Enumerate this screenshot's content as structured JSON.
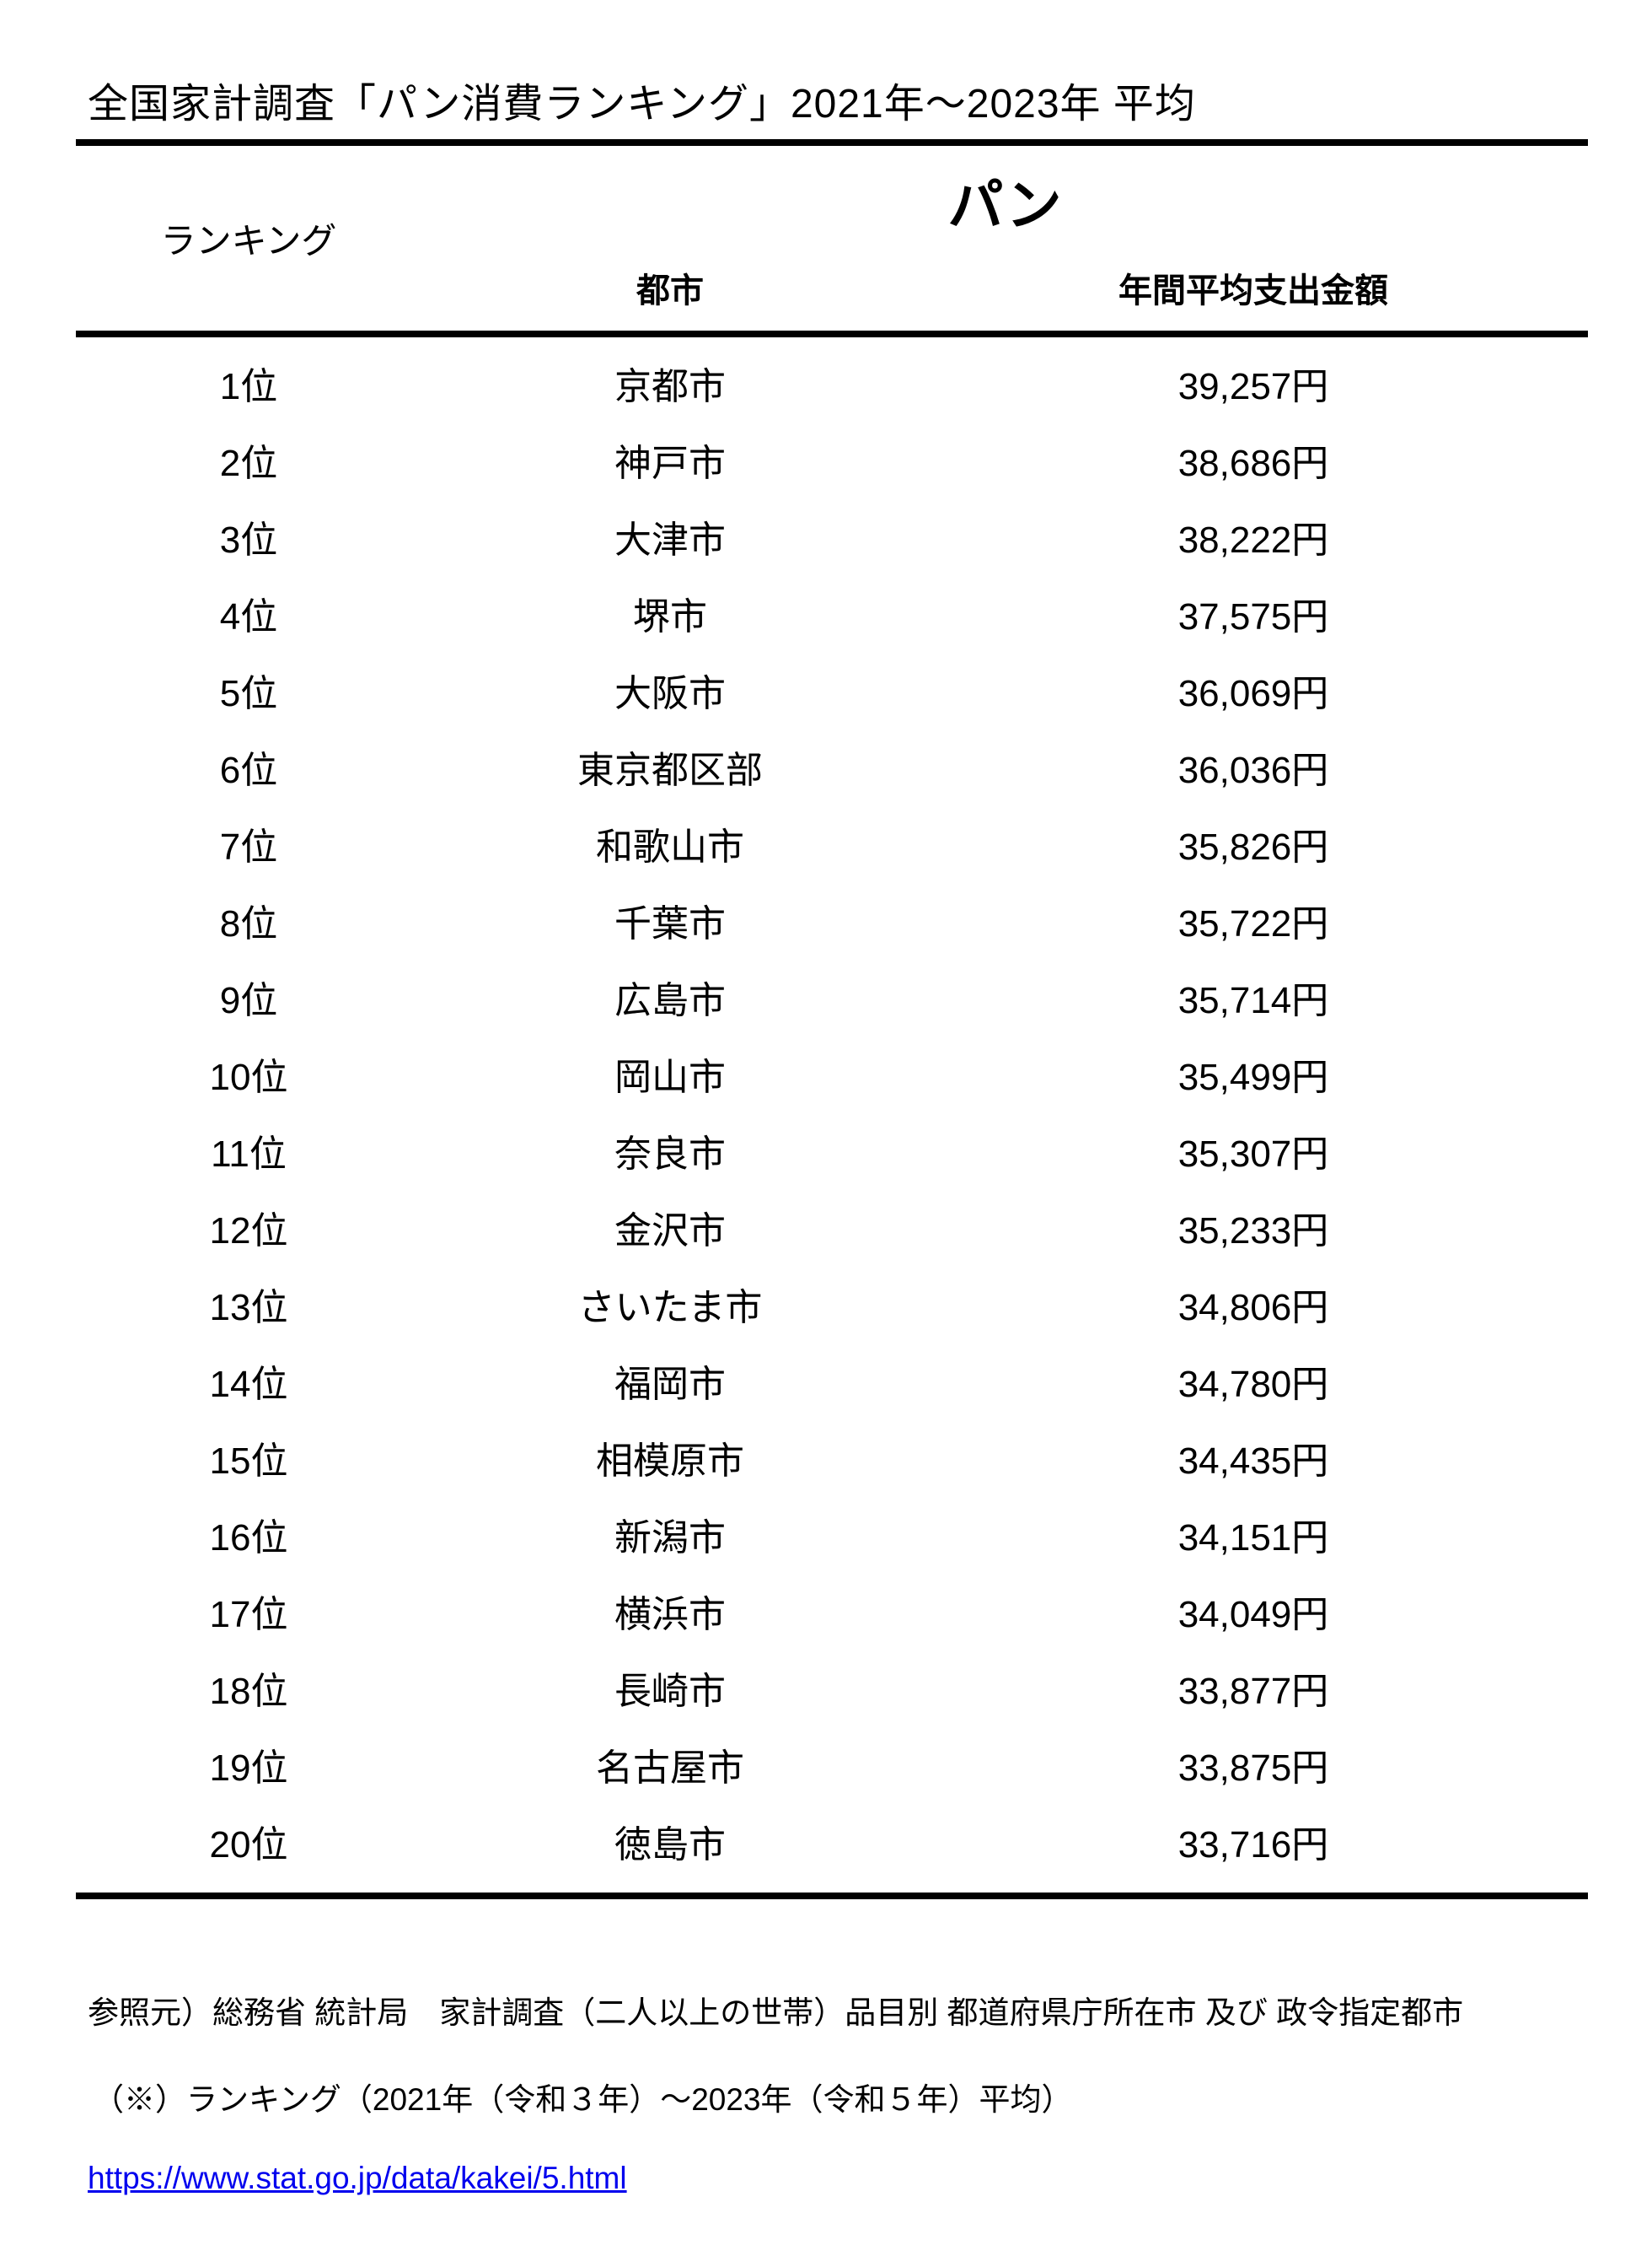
{
  "title": "全国家計調査「パン消費ランキング」2021年～2023年 平均",
  "table": {
    "ranking_header": "ランキング",
    "product_header": "パン",
    "columns": [
      "都市",
      "年間平均支出金額"
    ],
    "rows": [
      {
        "rank": "1位",
        "city": "京都市",
        "amount": "39,257円"
      },
      {
        "rank": "2位",
        "city": "神戸市",
        "amount": "38,686円"
      },
      {
        "rank": "3位",
        "city": "大津市",
        "amount": "38,222円"
      },
      {
        "rank": "4位",
        "city": "堺市",
        "amount": "37,575円"
      },
      {
        "rank": "5位",
        "city": "大阪市",
        "amount": "36,069円"
      },
      {
        "rank": "6位",
        "city": "東京都区部",
        "amount": "36,036円"
      },
      {
        "rank": "7位",
        "city": "和歌山市",
        "amount": "35,826円"
      },
      {
        "rank": "8位",
        "city": "千葉市",
        "amount": "35,722円"
      },
      {
        "rank": "9位",
        "city": "広島市",
        "amount": "35,714円"
      },
      {
        "rank": "10位",
        "city": "岡山市",
        "amount": "35,499円"
      },
      {
        "rank": "11位",
        "city": "奈良市",
        "amount": "35,307円"
      },
      {
        "rank": "12位",
        "city": "金沢市",
        "amount": "35,233円"
      },
      {
        "rank": "13位",
        "city": "さいたま市",
        "amount": "34,806円"
      },
      {
        "rank": "14位",
        "city": "福岡市",
        "amount": "34,780円"
      },
      {
        "rank": "15位",
        "city": "相模原市",
        "amount": "34,435円"
      },
      {
        "rank": "16位",
        "city": "新潟市",
        "amount": "34,151円"
      },
      {
        "rank": "17位",
        "city": "横浜市",
        "amount": "34,049円"
      },
      {
        "rank": "18位",
        "city": "長崎市",
        "amount": "33,877円"
      },
      {
        "rank": "19位",
        "city": "名古屋市",
        "amount": "33,875円"
      },
      {
        "rank": "20位",
        "city": "徳島市",
        "amount": "33,716円"
      }
    ]
  },
  "footer": {
    "source": "参照元）総務省 統計局　家計調査（二人以上の世帯）品目別 都道府県庁所在市 及び 政令指定都市",
    "note": "（※）ランキング（2021年（令和３年）～2023年（令和５年）平均）",
    "link": "https://www.stat.go.jp/data/kakei/5.html"
  },
  "colors": {
    "text": "#000000",
    "background": "#ffffff",
    "rule": "#000000",
    "link": "#0000ee"
  }
}
